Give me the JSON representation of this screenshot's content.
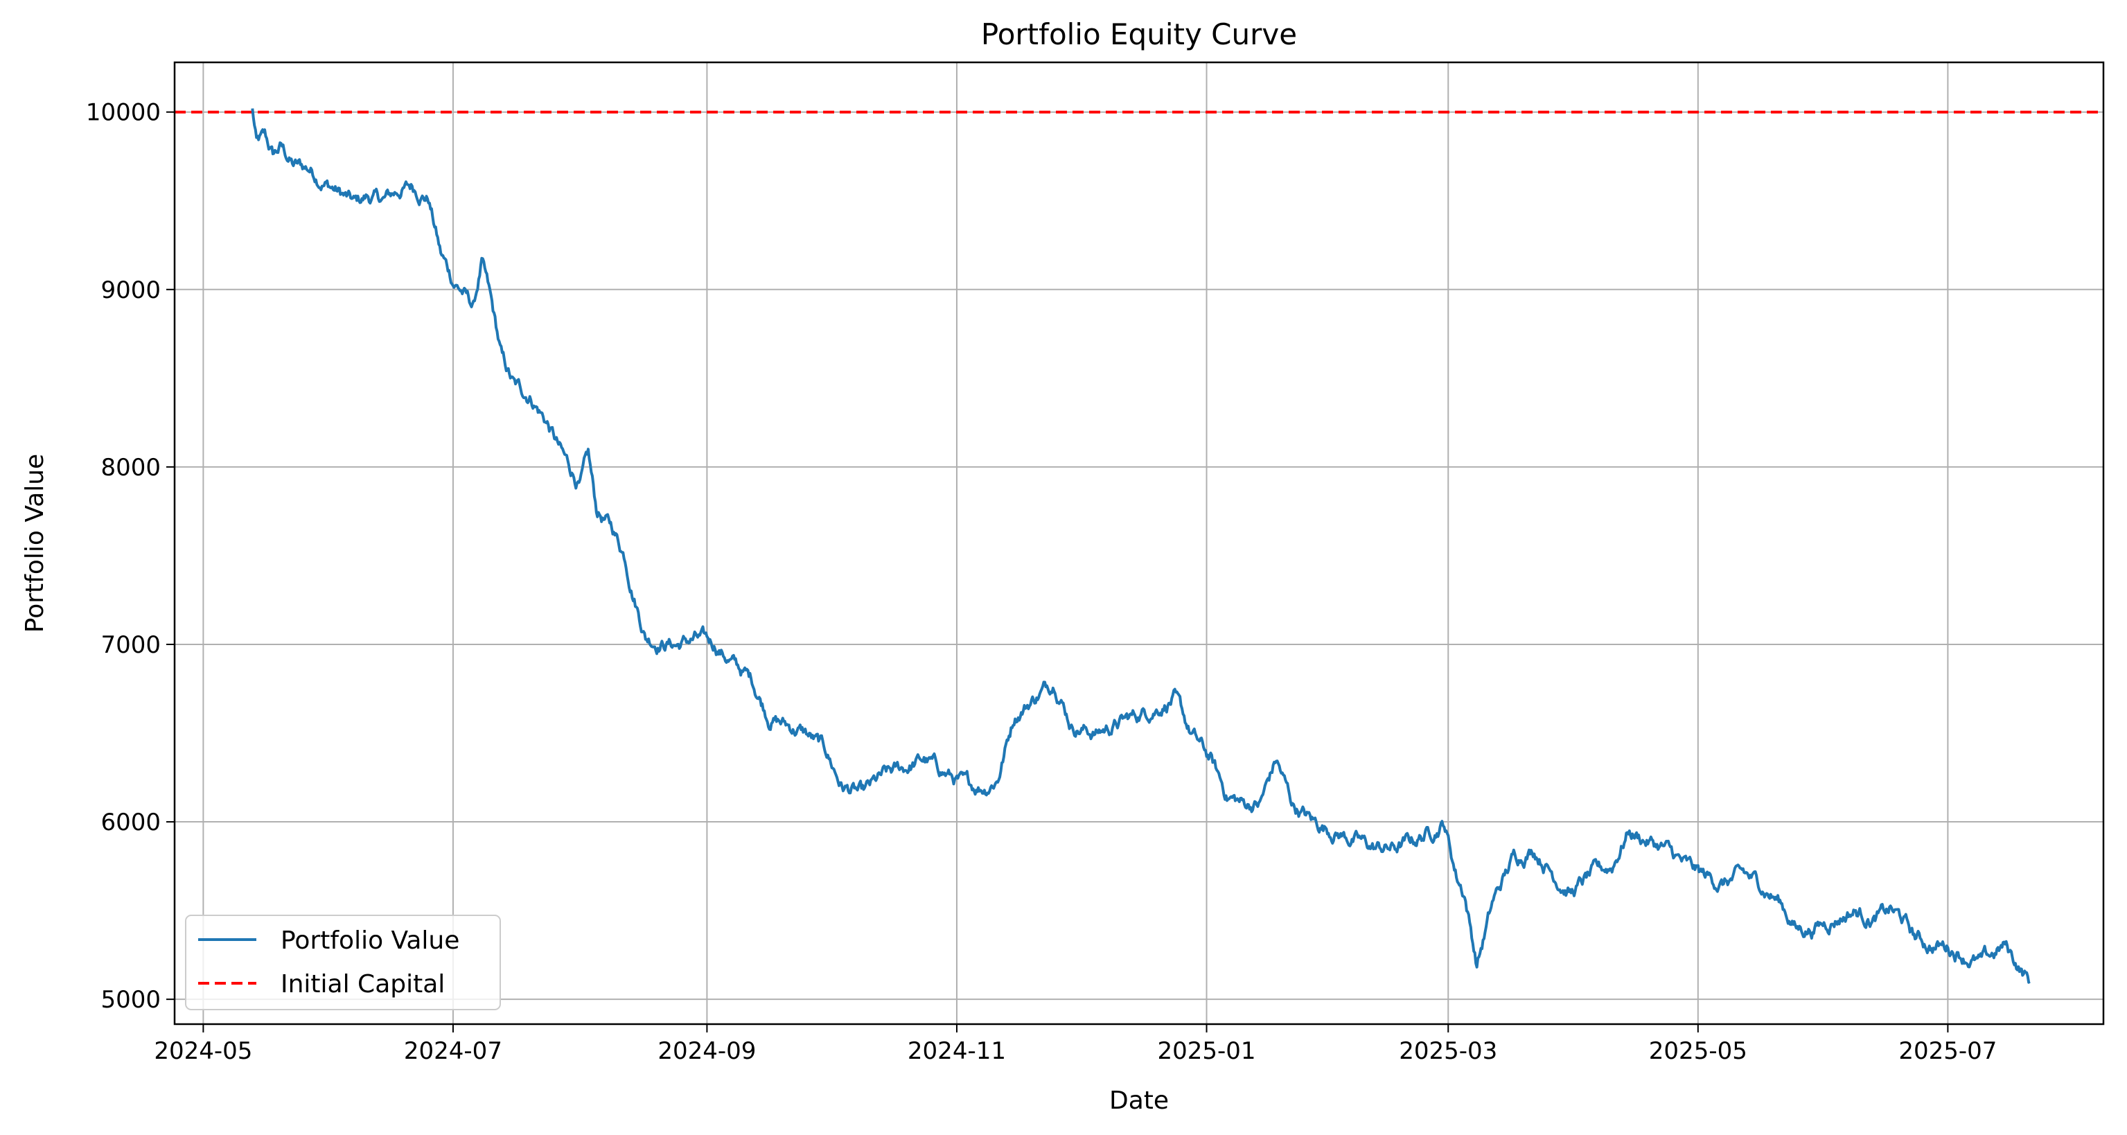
{
  "chart_data": {
    "type": "line",
    "title": "Portfolio Equity Curve",
    "xlabel": "Date",
    "ylabel": "Portfolio Value",
    "x_axis": {
      "type": "date",
      "range": [
        "2024-04-24",
        "2025-08-08"
      ],
      "ticks": [
        "2024-05",
        "2024-07",
        "2024-09",
        "2024-11",
        "2025-01",
        "2025-03",
        "2025-05",
        "2025-07"
      ]
    },
    "ylim": [
      4860,
      10280
    ],
    "yticks": [
      5000,
      6000,
      7000,
      8000,
      9000,
      10000
    ],
    "grid": true,
    "legend": "lower-left",
    "series": [
      {
        "name": "Portfolio Value",
        "color": "#1f77b4",
        "style": "solid",
        "noise": 55,
        "x": [
          "2024-05-13",
          "2024-05-14",
          "2024-05-16",
          "2024-05-18",
          "2024-05-20",
          "2024-05-23",
          "2024-05-27",
          "2024-05-30",
          "2024-06-03",
          "2024-06-07",
          "2024-06-10",
          "2024-06-14",
          "2024-06-18",
          "2024-06-21",
          "2024-06-25",
          "2024-06-28",
          "2024-07-01",
          "2024-07-03",
          "2024-07-06",
          "2024-07-08",
          "2024-07-10",
          "2024-07-13",
          "2024-07-16",
          "2024-07-20",
          "2024-07-24",
          "2024-07-28",
          "2024-08-01",
          "2024-08-03",
          "2024-08-05",
          "2024-08-09",
          "2024-08-12",
          "2024-08-14",
          "2024-08-17",
          "2024-08-20",
          "2024-08-25",
          "2024-08-29",
          "2024-09-03",
          "2024-09-07",
          "2024-09-12",
          "2024-09-16",
          "2024-09-20",
          "2024-09-25",
          "2024-09-30",
          "2024-10-04",
          "2024-10-09",
          "2024-10-14",
          "2024-10-19",
          "2024-10-24",
          "2024-10-29",
          "2024-11-03",
          "2024-11-08",
          "2024-11-11",
          "2024-11-15",
          "2024-11-20",
          "2024-11-25",
          "2024-11-29",
          "2024-12-05",
          "2024-12-10",
          "2024-12-15",
          "2024-12-20",
          "2024-12-24",
          "2024-12-28",
          "2025-01-02",
          "2025-01-06",
          "2025-01-10",
          "2025-01-14",
          "2025-01-18",
          "2025-01-22",
          "2025-01-27",
          "2025-02-01",
          "2025-02-06",
          "2025-02-11",
          "2025-02-16",
          "2025-02-21",
          "2025-02-25",
          "2025-02-28",
          "2025-03-03",
          "2025-03-05",
          "2025-03-08",
          "2025-03-12",
          "2025-03-17",
          "2025-03-22",
          "2025-03-27",
          "2025-03-31",
          "2025-04-05",
          "2025-04-10",
          "2025-04-14",
          "2025-04-18",
          "2025-04-23",
          "2025-04-28",
          "2025-05-02",
          "2025-05-07",
          "2025-05-12",
          "2025-05-16",
          "2025-05-21",
          "2025-05-25",
          "2025-05-29",
          "2025-06-03",
          "2025-06-08",
          "2025-06-13",
          "2025-06-17",
          "2025-06-20",
          "2025-06-23",
          "2025-06-27",
          "2025-07-01",
          "2025-07-05",
          "2025-07-09",
          "2025-07-12",
          "2025-07-15",
          "2025-07-18",
          "2025-07-21"
        ],
        "y": [
          10020,
          9820,
          9850,
          9750,
          9800,
          9700,
          9680,
          9620,
          9550,
          9480,
          9520,
          9500,
          9560,
          9580,
          9520,
          9200,
          9050,
          9000,
          8900,
          9150,
          8950,
          8600,
          8450,
          8400,
          8250,
          8050,
          7900,
          8050,
          7750,
          7650,
          7500,
          7300,
          7050,
          7020,
          7000,
          7030,
          7000,
          6900,
          6800,
          6600,
          6550,
          6500,
          6400,
          6200,
          6150,
          6250,
          6300,
          6350,
          6280,
          6200,
          6200,
          6250,
          6600,
          6700,
          6800,
          6550,
          6500,
          6550,
          6600,
          6650,
          6700,
          6500,
          6350,
          6150,
          6100,
          6100,
          6350,
          6100,
          6000,
          5950,
          5900,
          5850,
          5850,
          5900,
          5950,
          6000,
          5700,
          5600,
          5200,
          5550,
          5800,
          5850,
          5700,
          5600,
          5700,
          5750,
          5950,
          5900,
          5850,
          5750,
          5700,
          5650,
          5700,
          5650,
          5550,
          5400,
          5400,
          5450,
          5500,
          5450,
          5500,
          5450,
          5350,
          5300,
          5300,
          5250,
          5200,
          5250,
          5300,
          5200,
          5100
        ]
      },
      {
        "name": "Initial Capital",
        "color": "#ff0000",
        "style": "dashed",
        "y_constant": 10000
      }
    ]
  }
}
